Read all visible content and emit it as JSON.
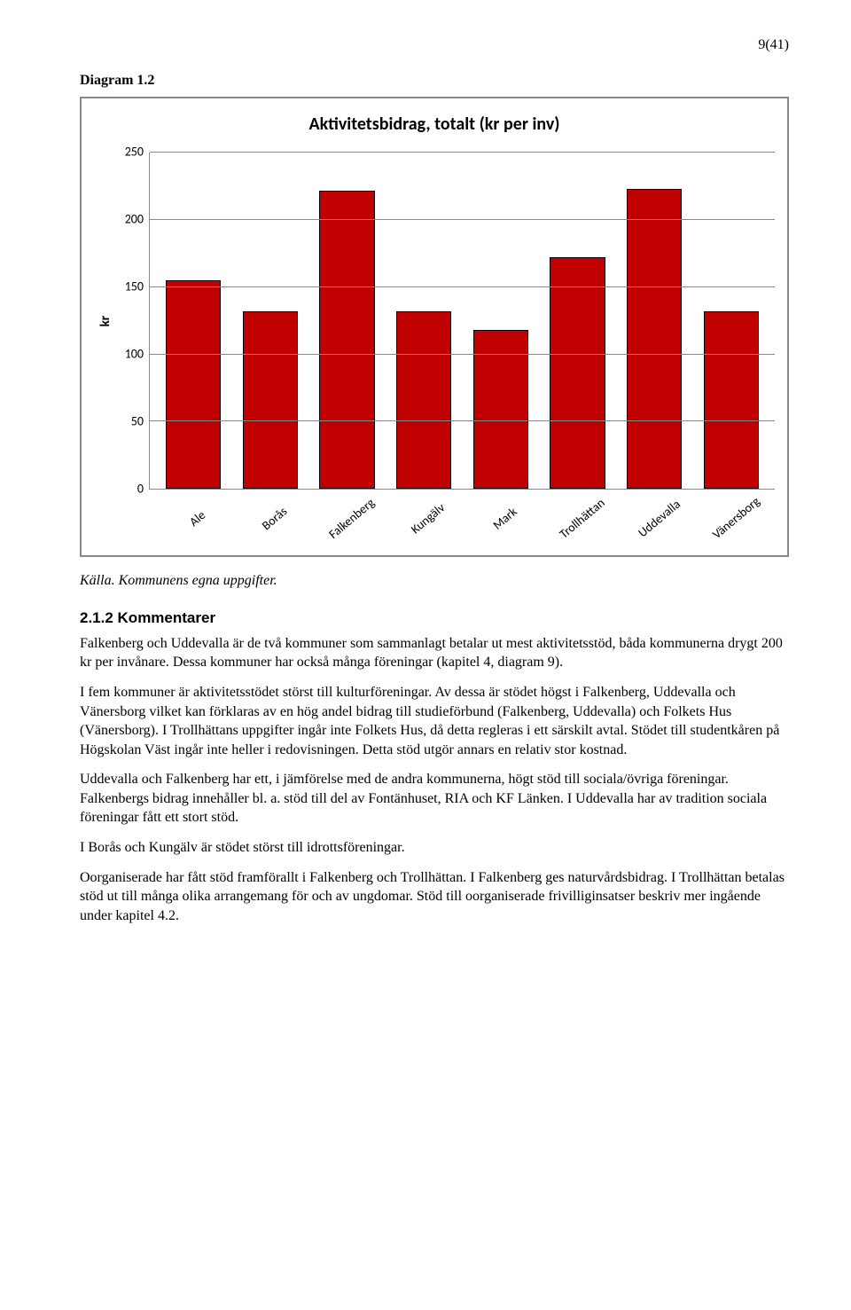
{
  "page_number": "9(41)",
  "diagram_label": "Diagram 1.2",
  "chart": {
    "type": "bar",
    "title": "Aktivitetsbidrag, totalt (kr per inv)",
    "ylabel": "kr",
    "categories": [
      "Ale",
      "Borås",
      "Falkenberg",
      "Kungälv",
      "Mark",
      "Trollhättan",
      "Uddevalla",
      "Vänersborg"
    ],
    "values": [
      155,
      132,
      222,
      132,
      118,
      172,
      223,
      132
    ],
    "bar_color": "#c00000",
    "bar_border_color": "#000000",
    "background_color": "#ffffff",
    "grid_color": "#888888",
    "ylim": [
      0,
      250
    ],
    "ytick_step": 50,
    "yticks": [
      0,
      50,
      100,
      150,
      200,
      250
    ],
    "bar_width_pct": 9,
    "title_fontsize": 20,
    "label_fontsize": 15,
    "tick_fontsize": 14,
    "font_family": "Calibri"
  },
  "source_line": "Källa. Kommunens egna uppgifter.",
  "section_heading": "2.1.2 Kommentarer",
  "paragraphs": [
    "Falkenberg och Uddevalla är de två kommuner som sammanlagt betalar ut mest aktivitetsstöd, båda kommunerna drygt 200 kr per invånare. Dessa kommuner har också många föreningar (kapitel 4, diagram 9).",
    "I fem kommuner är aktivitetsstödet störst till kulturföreningar. Av dessa är stödet högst i Falkenberg, Uddevalla och Vänersborg vilket kan förklaras av en hög andel bidrag till studieförbund (Falkenberg, Uddevalla) och Folkets Hus (Vänersborg). I Trollhättans uppgifter ingår inte Folkets Hus, då detta regleras i ett särskilt avtal. Stödet till studentkåren på Högskolan Väst ingår inte heller i redovisningen. Detta stöd utgör annars en relativ stor kostnad.",
    "Uddevalla och Falkenberg har ett, i jämförelse med de andra kommunerna, högt stöd till sociala/övriga föreningar. Falkenbergs bidrag innehåller bl. a. stöd till del av Fontänhuset, RIA och KF Länken. I Uddevalla har av tradition sociala föreningar fått ett stort stöd.",
    "I Borås och Kungälv är stödet störst till idrottsföreningar.",
    "Oorganiserade har fått stöd framförallt i Falkenberg och Trollhättan. I Falkenberg ges naturvårdsbidrag. I Trollhättan betalas stöd ut till många olika arrangemang för och av ungdomar. Stöd till oorganiserade frivilliginsatser beskriv mer ingående under kapitel 4.2."
  ]
}
